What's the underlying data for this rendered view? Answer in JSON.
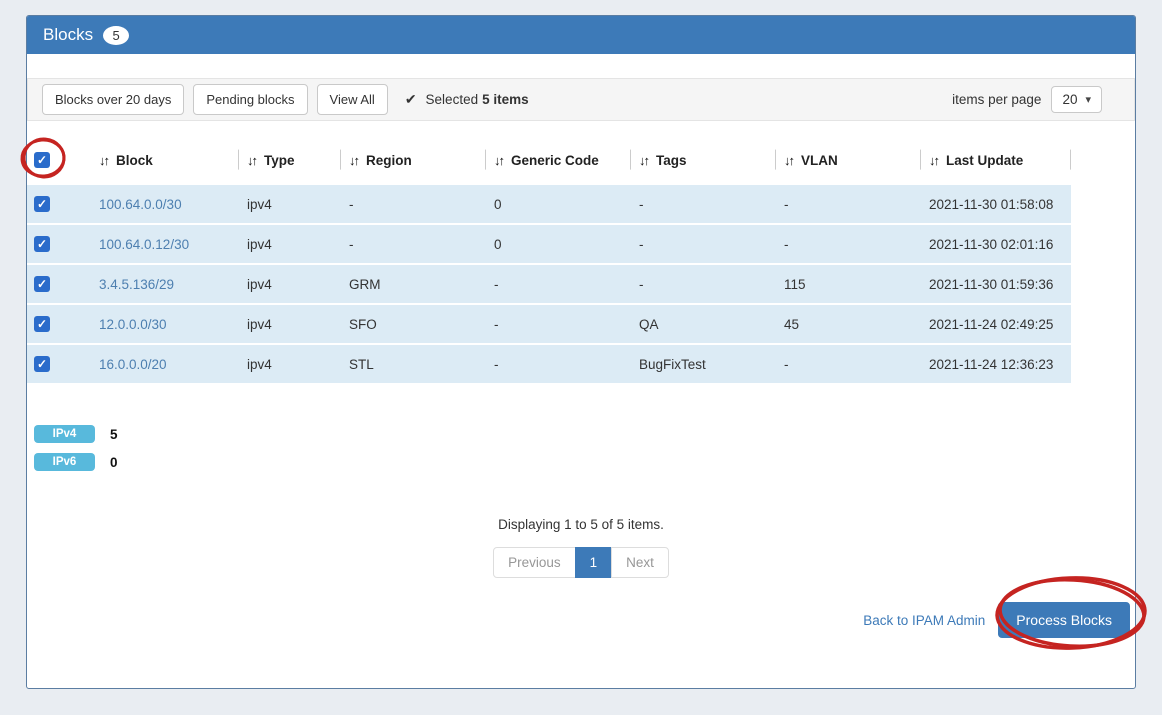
{
  "panel": {
    "title": "Blocks",
    "count_badge": "5"
  },
  "toolbar": {
    "filter_buttons": [
      "Blocks over 20 days",
      "Pending blocks",
      "View All"
    ],
    "selected_prefix": "Selected",
    "selected_bold": "5 items",
    "items_per_page_label": "items per page",
    "items_per_page_value": "20"
  },
  "icons": {
    "sort": "↓↑",
    "checkmark": "✔",
    "caret": "▾",
    "checkbox_check": "✓"
  },
  "table": {
    "columns": [
      "Block",
      "Type",
      "Region",
      "Generic Code",
      "Tags",
      "VLAN",
      "Last Update"
    ],
    "rows": [
      {
        "checked": true,
        "block": "100.64.0.0/30",
        "type": "ipv4",
        "region": "-",
        "generic_code": "0",
        "tags": "-",
        "vlan": "-",
        "last_update": "2021-11-30 01:58:08"
      },
      {
        "checked": true,
        "block": "100.64.0.12/30",
        "type": "ipv4",
        "region": "-",
        "generic_code": "0",
        "tags": "-",
        "vlan": "-",
        "last_update": "2021-11-30 02:01:16"
      },
      {
        "checked": true,
        "block": "3.4.5.136/29",
        "type": "ipv4",
        "region": "GRM",
        "generic_code": "-",
        "tags": "-",
        "vlan": "115",
        "last_update": "2021-11-30 01:59:36"
      },
      {
        "checked": true,
        "block": "12.0.0.0/30",
        "type": "ipv4",
        "region": "SFO",
        "generic_code": "-",
        "tags": "QA",
        "vlan": "45",
        "last_update": "2021-11-24 02:49:25"
      },
      {
        "checked": true,
        "block": "16.0.0.0/20",
        "type": "ipv4",
        "region": "STL",
        "generic_code": "-",
        "tags": "BugFixTest",
        "vlan": "-",
        "last_update": "2021-11-24 12:36:23"
      }
    ]
  },
  "summary": {
    "ipv4_label": "IPv4",
    "ipv4_count": "5",
    "ipv6_label": "IPv6",
    "ipv6_count": "0"
  },
  "pagination": {
    "display_text": "Displaying 1 to 5 of 5 items.",
    "previous_label": "Previous",
    "current_page": "1",
    "next_label": "Next"
  },
  "footer": {
    "back_link": "Back to IPAM Admin",
    "process_button": "Process Blocks"
  },
  "colors": {
    "header_blue": "#3d7ab8",
    "row_highlight": "#dcebf5",
    "info_badge_blue": "#58b9dc",
    "checkbox_blue": "#2a6ccb",
    "link_blue": "#4d7fb0",
    "annotation_red": "#c52421",
    "page_background": "#e9edf2"
  }
}
